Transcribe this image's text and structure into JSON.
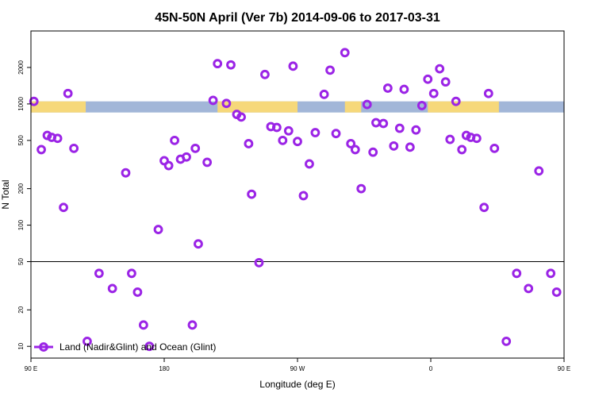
{
  "chart_data": {
    "type": "scatter",
    "title": "45N-50N April (Ver 7b)   2014-09-06 to 2017-03-31",
    "xlabel": "Longitude (deg E)",
    "ylabel": "N Total",
    "x_axis": {
      "range_deg_east": [
        90,
        450
      ],
      "ticks": [
        {
          "value": 90,
          "label": "90 E"
        },
        {
          "value": 180,
          "label": "180"
        },
        {
          "value": 270,
          "label": "90 W"
        },
        {
          "value": 360,
          "label": "0"
        },
        {
          "value": 450,
          "label": "90 E"
        },
        {
          "value": 540,
          "label": "180"
        }
      ]
    },
    "y_axis": {
      "scale": "log",
      "range": [
        8,
        4000
      ],
      "ticks": [
        {
          "value": 10,
          "label": "10"
        },
        {
          "value": 20,
          "label": "20"
        },
        {
          "value": 50,
          "label": "50"
        },
        {
          "value": 100,
          "label": "100"
        },
        {
          "value": 200,
          "label": "200"
        },
        {
          "value": 500,
          "label": "500"
        },
        {
          "value": 1000,
          "label": "1000"
        },
        {
          "value": 2000,
          "label": "2000"
        }
      ]
    },
    "reference_line": {
      "y": 50,
      "color": "#000000"
    },
    "surface_strip": {
      "y_range": [
        850,
        1050
      ],
      "ocean_color": "#a2b6d8",
      "land_color": "#f6d87a",
      "land_segments_lon": [
        [
          90,
          127
        ],
        [
          216,
          270
        ],
        [
          302,
          313
        ],
        [
          358,
          406
        ]
      ]
    },
    "legend": {
      "position": "bottom-left",
      "label": "Land (Nadir&Glint) and Ocean (Glint)"
    },
    "marker_color": "#9b24e6",
    "series": [
      {
        "name": "Land (Nadir&Glint) and Ocean (Glint)",
        "points": [
          [
            92,
            1050
          ],
          [
            97,
            420
          ],
          [
            101,
            550
          ],
          [
            104,
            530
          ],
          [
            108,
            520
          ],
          [
            112,
            140
          ],
          [
            115,
            1220
          ],
          [
            119,
            430
          ],
          [
            128,
            11
          ],
          [
            136,
            40
          ],
          [
            145,
            30
          ],
          [
            154,
            270
          ],
          [
            158,
            40
          ],
          [
            162,
            28
          ],
          [
            166,
            15
          ],
          [
            170,
            10
          ],
          [
            176,
            92
          ],
          [
            180,
            340
          ],
          [
            183,
            310
          ],
          [
            187,
            500
          ],
          [
            191,
            350
          ],
          [
            195,
            365
          ],
          [
            199,
            15
          ],
          [
            201,
            430
          ],
          [
            203,
            70
          ],
          [
            209,
            330
          ],
          [
            213,
            1070
          ],
          [
            216,
            2150
          ],
          [
            222,
            1010
          ],
          [
            225,
            2100
          ],
          [
            229,
            820
          ],
          [
            232,
            780
          ],
          [
            237,
            470
          ],
          [
            239,
            180
          ],
          [
            244,
            49
          ],
          [
            248,
            1750
          ],
          [
            252,
            650
          ],
          [
            256,
            640
          ],
          [
            260,
            500
          ],
          [
            264,
            600
          ],
          [
            267,
            2050
          ],
          [
            270,
            490
          ],
          [
            274,
            175
          ],
          [
            278,
            320
          ],
          [
            282,
            580
          ],
          [
            288,
            1200
          ],
          [
            292,
            1900
          ],
          [
            296,
            570
          ],
          [
            302,
            2650
          ],
          [
            306,
            470
          ],
          [
            309,
            420
          ],
          [
            313,
            200
          ],
          [
            317,
            990
          ],
          [
            321,
            400
          ],
          [
            323,
            700
          ],
          [
            328,
            690
          ],
          [
            331,
            1350
          ],
          [
            335,
            450
          ],
          [
            339,
            630
          ],
          [
            342,
            1320
          ],
          [
            346,
            440
          ],
          [
            350,
            610
          ],
          [
            354,
            970
          ],
          [
            358,
            1600
          ],
          [
            362,
            1220
          ],
          [
            366,
            1950
          ],
          [
            370,
            1520
          ],
          [
            373,
            510
          ],
          [
            377,
            1050
          ],
          [
            381,
            420
          ],
          [
            384,
            550
          ],
          [
            387,
            530
          ],
          [
            391,
            520
          ],
          [
            396,
            140
          ],
          [
            399,
            1220
          ],
          [
            403,
            430
          ],
          [
            411,
            11
          ],
          [
            418,
            40
          ],
          [
            426,
            30
          ],
          [
            433,
            280
          ],
          [
            441,
            40
          ],
          [
            445,
            28
          ]
        ]
      }
    ]
  }
}
